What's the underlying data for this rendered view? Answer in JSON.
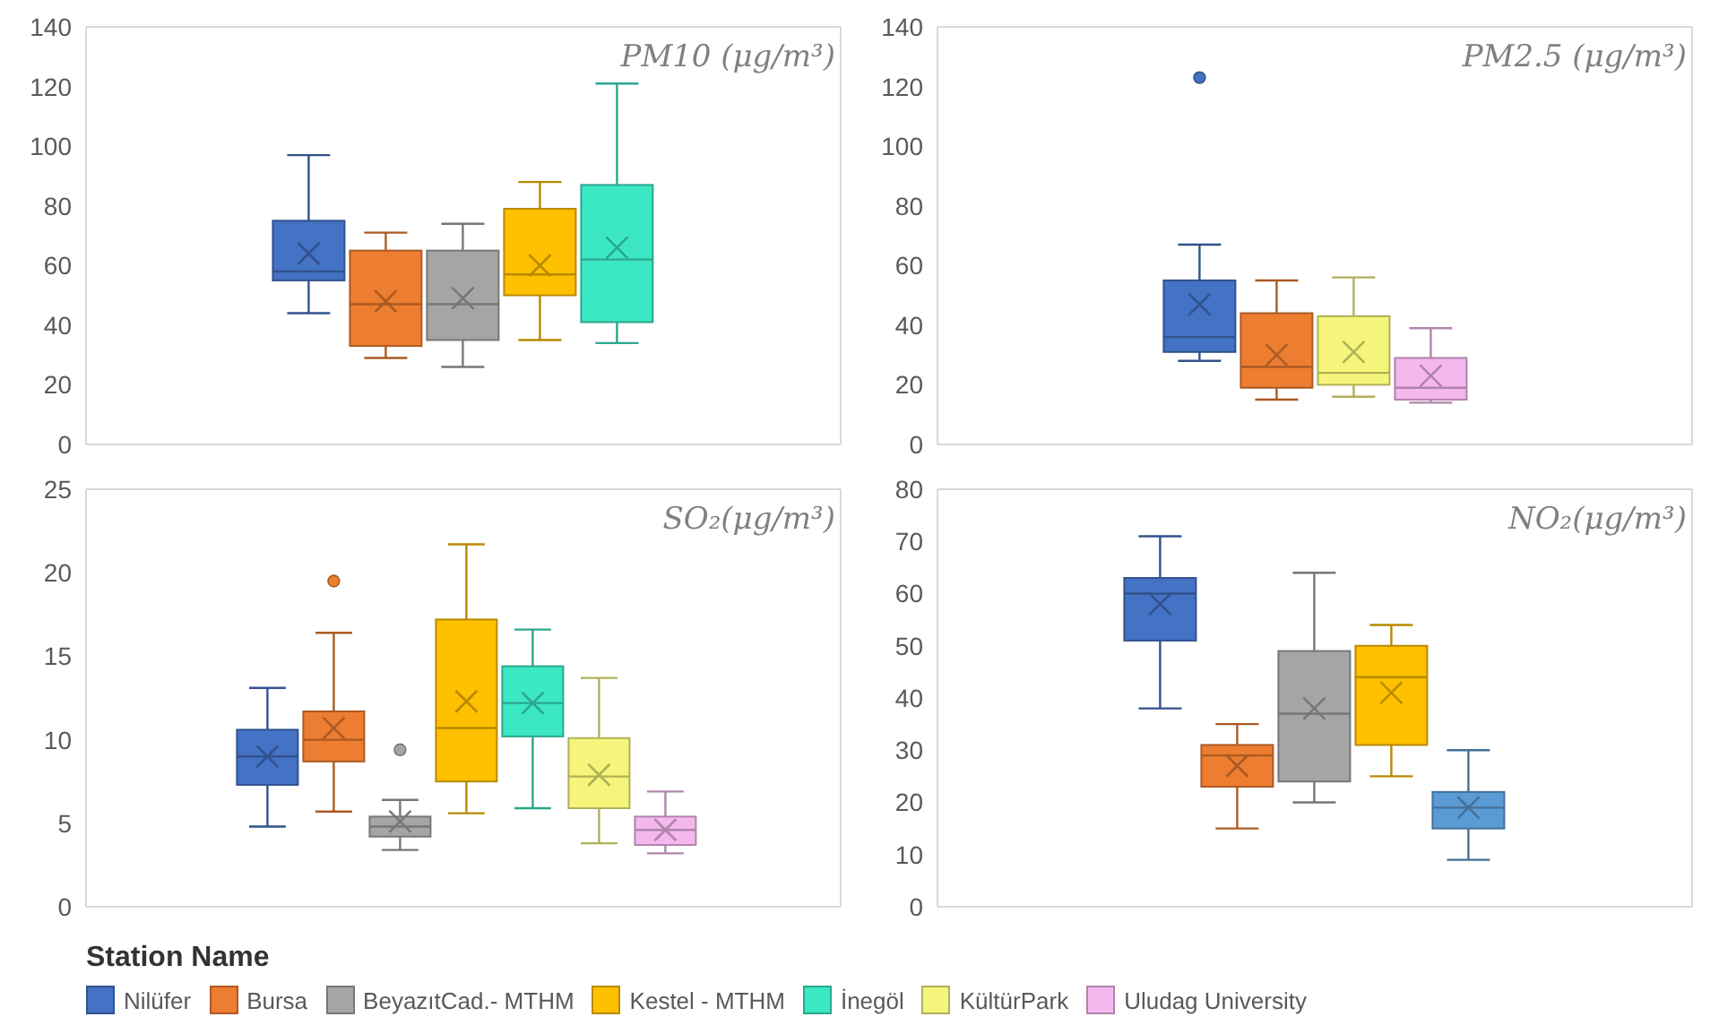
{
  "chart_data": [
    {
      "type": "box",
      "title": "PM10 (μg/m³)",
      "categories": [
        null
      ],
      "ylim": [
        0,
        140
      ],
      "yticks": [
        0,
        20,
        40,
        60,
        80,
        100,
        120,
        140
      ],
      "tick_labels": "y",
      "series": [
        {
          "color": "#4472c4",
          "boxes": [
            {
              "low": 44,
              "q1": 55,
              "median": 58,
              "q3": 75,
              "high": 97,
              "mean": 64
            }
          ]
        },
        {
          "color": "#ed7d31",
          "boxes": [
            {
              "low": 29,
              "q1": 33,
              "median": 47,
              "q3": 65,
              "high": 71,
              "mean": 48
            }
          ]
        },
        {
          "color": "#a5a5a5",
          "boxes": [
            {
              "low": 26,
              "q1": 35,
              "median": 47,
              "q3": 65,
              "high": 74,
              "mean": 49
            }
          ]
        },
        {
          "color": "#ffc000",
          "boxes": [
            {
              "low": 35,
              "q1": 50,
              "median": 57,
              "q3": 79,
              "high": 88,
              "mean": 60
            }
          ]
        },
        {
          "color": "#3ce8c4",
          "boxes": [
            {
              "low": 34,
              "q1": 41,
              "median": 62,
              "q3": 87,
              "high": 121,
              "mean": 66
            }
          ]
        }
      ]
    },
    {
      "type": "box",
      "title": "PM2.5 (μg/m³)",
      "categories": [
        null
      ],
      "ylim": [
        0,
        140
      ],
      "yticks": [
        0,
        20,
        40,
        60,
        80,
        100,
        120,
        140
      ],
      "tick_labels": "y",
      "series": [
        {
          "color": "#4472c4",
          "boxes": [
            {
              "low": 28,
              "q1": 31,
              "median": 36,
              "q3": 55,
              "high": 67,
              "mean": 47,
              "outliers": [
                123
              ]
            }
          ]
        },
        {
          "color": "#ed7d31",
          "boxes": [
            {
              "low": 15,
              "q1": 19,
              "median": 26,
              "q3": 44,
              "high": 55,
              "mean": 30
            }
          ]
        },
        {
          "color": "#f5f57b",
          "boxes": [
            {
              "low": 16,
              "q1": 20,
              "median": 24,
              "q3": 43,
              "high": 56,
              "mean": 31
            }
          ]
        },
        {
          "color": "#f4b8ee",
          "boxes": [
            {
              "low": 14,
              "q1": 15,
              "median": 19,
              "q3": 29,
              "high": 39,
              "mean": 23
            }
          ]
        }
      ]
    },
    {
      "type": "box",
      "title": "SO₂(μg/m³)",
      "categories": [
        null
      ],
      "ylim": [
        0,
        25
      ],
      "yticks": [
        0,
        5,
        10,
        15,
        20,
        25
      ],
      "tick_labels": "y",
      "legend": "bottom",
      "legend_title": "Station Name",
      "series": [
        {
          "name": "Nilüfer",
          "color": "#4472c4",
          "boxes": [
            {
              "low": 4.8,
              "q1": 7.3,
              "median": 9,
              "q3": 10.6,
              "high": 13.1,
              "mean": 9
            }
          ]
        },
        {
          "name": "Bursa",
          "color": "#ed7d31",
          "boxes": [
            {
              "low": 5.7,
              "q1": 8.7,
              "median": 10,
              "q3": 11.7,
              "high": 16.4,
              "mean": 10.7,
              "outliers": [
                19.5
              ]
            }
          ]
        },
        {
          "name": "BeyazıtCad.- MTHM",
          "color": "#a5a5a5",
          "boxes": [
            {
              "low": 3.4,
              "q1": 4.2,
              "median": 4.8,
              "q3": 5.4,
              "high": 6.4,
              "mean": 5.1,
              "outliers": [
                9.4
              ]
            }
          ]
        },
        {
          "name": "Kestel - MTHM",
          "color": "#ffc000",
          "boxes": [
            {
              "low": 5.6,
              "q1": 7.5,
              "median": 10.7,
              "q3": 17.2,
              "high": 21.7,
              "mean": 12.3
            }
          ]
        },
        {
          "name": "İnegöl",
          "color": "#3ce8c4",
          "boxes": [
            {
              "low": 5.9,
              "q1": 10.2,
              "median": 12.2,
              "q3": 14.4,
              "high": 16.6,
              "mean": 12.2
            }
          ]
        },
        {
          "name": "KültürPark",
          "color": "#f5f57b",
          "boxes": [
            {
              "low": 3.8,
              "q1": 5.9,
              "median": 7.8,
              "q3": 10.1,
              "high": 13.7,
              "mean": 7.9
            }
          ]
        },
        {
          "name": "Uludag University",
          "color": "#f4b8ee",
          "boxes": [
            {
              "low": 3.2,
              "q1": 3.7,
              "median": 4.6,
              "q3": 5.4,
              "high": 6.9,
              "mean": 4.6
            }
          ]
        }
      ]
    },
    {
      "type": "box",
      "title": "NO₂(μg/m³)",
      "categories": [
        null
      ],
      "ylim": [
        0,
        80
      ],
      "yticks": [
        0,
        10,
        20,
        30,
        40,
        50,
        60,
        70,
        80
      ],
      "tick_labels": "y",
      "series": [
        {
          "color": "#4472c4",
          "boxes": [
            {
              "low": 38,
              "q1": 51,
              "median": 60,
              "q3": 63,
              "high": 71,
              "mean": 58
            }
          ]
        },
        {
          "color": "#ed7d31",
          "boxes": [
            {
              "low": 15,
              "q1": 23,
              "median": 29,
              "q3": 31,
              "high": 35,
              "mean": 27
            }
          ]
        },
        {
          "color": "#a5a5a5",
          "boxes": [
            {
              "low": 20,
              "q1": 24,
              "median": 37,
              "q3": 49,
              "high": 64,
              "mean": 38
            }
          ]
        },
        {
          "color": "#ffc000",
          "boxes": [
            {
              "low": 25,
              "q1": 31,
              "median": 44,
              "q3": 50,
              "high": 54,
              "mean": 41
            }
          ]
        },
        {
          "color": "#5b9bd5",
          "boxes": [
            {
              "low": 9,
              "q1": 15,
              "median": 19,
              "q3": 22,
              "high": 30,
              "mean": 19
            }
          ]
        }
      ]
    }
  ]
}
